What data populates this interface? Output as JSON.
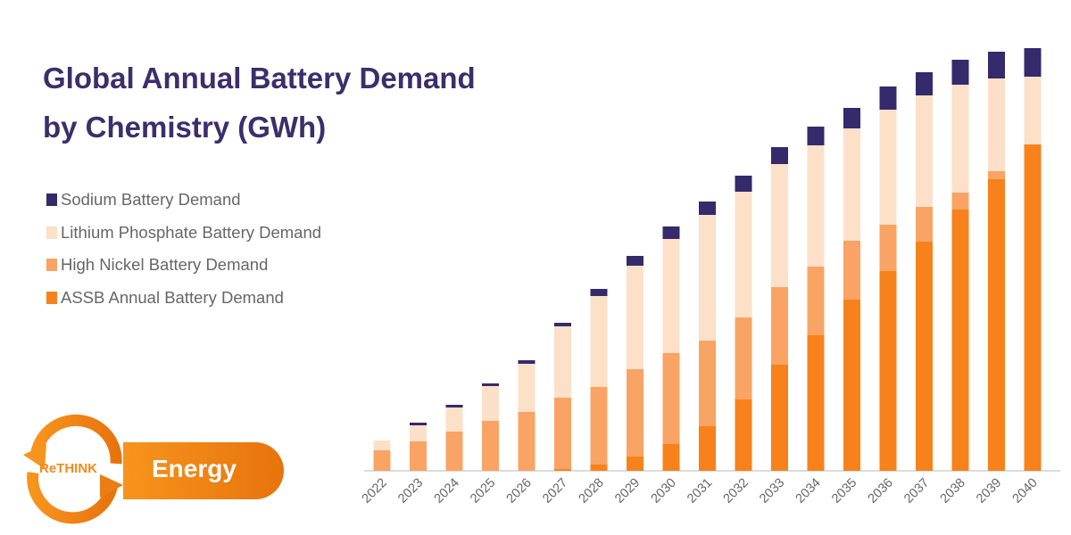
{
  "chart_data": {
    "type": "bar",
    "stacked": true,
    "title": "Global Annual Battery Demand by Chemistry (GWh)",
    "title_lines": [
      "Global Annual Battery Demand",
      "by Chemistry (GWh)"
    ],
    "xlabel": "",
    "ylabel": "",
    "y_axis_shown": false,
    "grid": false,
    "legend_position": "left",
    "categories": [
      "2022",
      "2023",
      "2024",
      "2025",
      "2026",
      "2027",
      "2028",
      "2029",
      "2030",
      "2031",
      "2032",
      "2033",
      "2034",
      "2035",
      "2036",
      "2037",
      "2038",
      "2039",
      "2040"
    ],
    "value_note": "relative estimates (no y-axis printed)",
    "series": [
      {
        "name": "ASSB Annual Battery Demand",
        "color": "#f7821b",
        "values": [
          0,
          0,
          0,
          0,
          0,
          2,
          7,
          16,
          30,
          50,
          80,
          119,
          152,
          192,
          224,
          257,
          293,
          327,
          366
        ]
      },
      {
        "name": "High Nickel Battery Demand",
        "color": "#f9a464",
        "values": [
          23,
          33,
          44,
          56,
          66,
          80,
          87,
          98,
          102,
          96,
          92,
          87,
          77,
          66,
          52,
          39,
          19,
          9,
          0
        ]
      },
      {
        "name": "Lithium Phosphate Battery Demand",
        "color": "#fde0c8",
        "values": [
          11,
          18,
          27,
          39,
          54,
          80,
          102,
          116,
          128,
          141,
          141,
          138,
          136,
          126,
          129,
          125,
          121,
          104,
          76
        ]
      },
      {
        "name": "Sodium Battery Demand",
        "color": "#352a6b",
        "values": [
          0,
          3,
          3,
          3,
          4,
          4,
          8,
          11,
          14,
          15,
          18,
          19,
          21,
          23,
          26,
          26,
          28,
          30,
          32
        ]
      }
    ],
    "legend_order": [
      "Sodium Battery Demand",
      "Lithium Phosphate Battery Demand",
      "High Nickel Battery Demand",
      "ASSB Annual Battery Demand"
    ]
  },
  "logo": {
    "ring_text": "ReTHINK",
    "pill_text": "Energy"
  }
}
